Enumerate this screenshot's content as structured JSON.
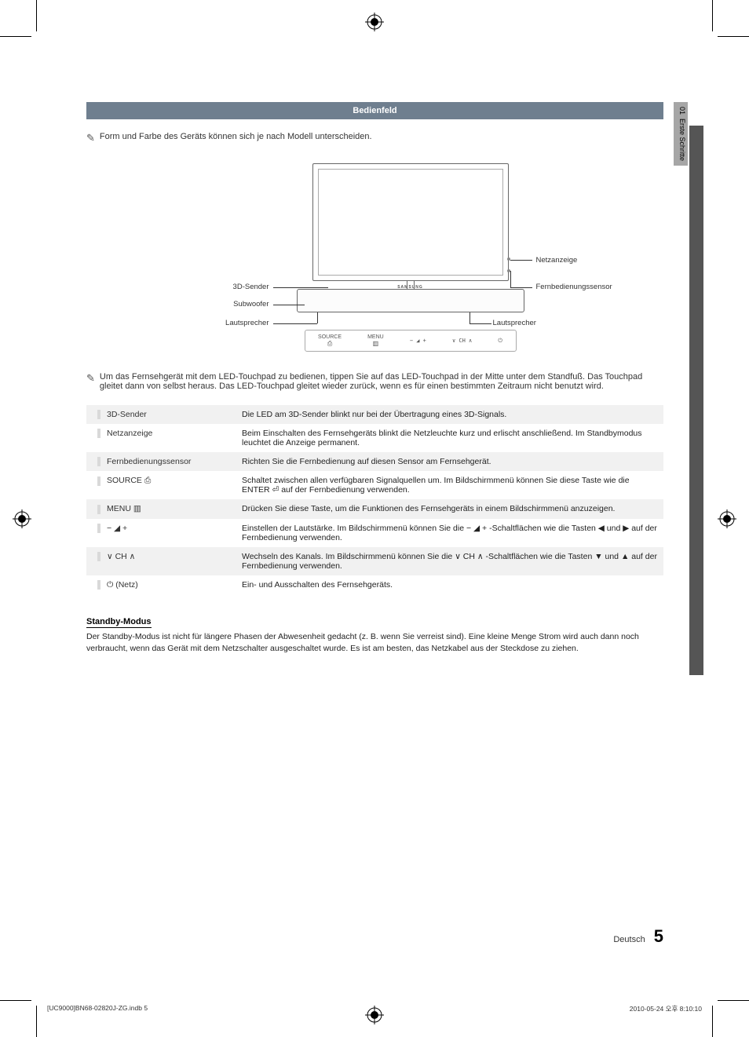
{
  "crop_marks": {
    "color": "#000000"
  },
  "side_tab": {
    "number": "01",
    "label": "Erste Schritte"
  },
  "section_header": "Bedienfeld",
  "note1_text": "Form und Farbe des Geräts können sich je nach Modell unterscheiden.",
  "diagram": {
    "labels": {
      "sender3d": "3D-Sender",
      "subwoofer": "Subwoofer",
      "lautsprecher_left": "Lautsprecher",
      "lautsprecher_right": "Lautsprecher",
      "netzanzeige": "Netzanzeige",
      "fernbedienungssensor": "Fernbedienungssensor"
    },
    "touchpad": {
      "source_label": "SOURCE",
      "menu_label": "MENU",
      "vol_symbol": "− ◢ +",
      "ch_symbol": "∨  CH  ∧",
      "power_symbol": "⏻"
    },
    "logo": "SAMSUNG"
  },
  "note2_text": "Um das Fernsehgerät mit dem LED-Touchpad zu bedienen, tippen Sie auf das LED-Touchpad in der Mitte unter dem Standfuß.  Das Touchpad gleitet dann von selbst heraus.  Das LED-Touchpad gleitet wieder zurück, wenn es für einen bestimmten Zeitraum nicht benutzt wird.",
  "table": {
    "rows": [
      {
        "label": "3D-Sender",
        "desc": "Die LED am 3D-Sender blinkt nur bei der Übertragung eines 3D-Signals."
      },
      {
        "label": "Netzanzeige",
        "desc": "Beim Einschalten des Fernsehgeräts blinkt die Netzleuchte kurz und erlischt anschließend. Im Standbymodus leuchtet die Anzeige permanent."
      },
      {
        "label": "Fernbedienungssensor",
        "desc": "Richten Sie die Fernbedienung auf diesen Sensor am Fernsehgerät."
      },
      {
        "label": "SOURCE ⎙",
        "desc": "Schaltet zwischen allen verfügbaren Signalquellen um. Im Bildschirmmenü können Sie diese Taste wie die ENTER ⏎ auf der Fernbedienung verwenden."
      },
      {
        "label": "MENU ▥",
        "desc": "Drücken Sie diese Taste, um die Funktionen des Fernsehgeräts in einem Bildschirmmenü anzuzeigen."
      },
      {
        "label": "− ◢ +",
        "desc": "Einstellen der Lautstärke. Im Bildschirmmenü können Sie die − ◢ + -Schaltflächen wie die Tasten ◀ und ▶ auf der Fernbedienung verwenden."
      },
      {
        "label": "∨ CH ∧",
        "desc": "Wechseln des Kanals. Im Bildschirmmenü können Sie die ∨ CH ∧ -Schaltflächen wie die Tasten ▼ und ▲ auf der Fernbedienung verwenden."
      },
      {
        "label": "⏻ (Netz)",
        "desc": "Ein- und Ausschalten des Fernsehgeräts."
      }
    ]
  },
  "standby": {
    "heading": "Standby-Modus",
    "text": "Der Standby-Modus ist nicht für längere Phasen der Abwesenheit gedacht (z. B. wenn Sie verreist sind). Eine kleine Menge Strom wird auch dann noch verbraucht, wenn das Gerät mit dem Netzschalter ausgeschaltet wurde. Es ist am besten, das Netzkabel aus der Steckdose zu ziehen."
  },
  "footer": {
    "lang": "Deutsch",
    "page": "5"
  },
  "file_meta": {
    "left": "[UC9000]BN68-02820J-ZG.indb   5",
    "right": "2010-05-24   오후 8:10:10"
  },
  "colors": {
    "section_header_bg": "#6f7f8f",
    "alt_row_bg": "#f1f1f1",
    "side_tab_bg": "#a6a6a6",
    "side_dark_bg": "#555555"
  }
}
